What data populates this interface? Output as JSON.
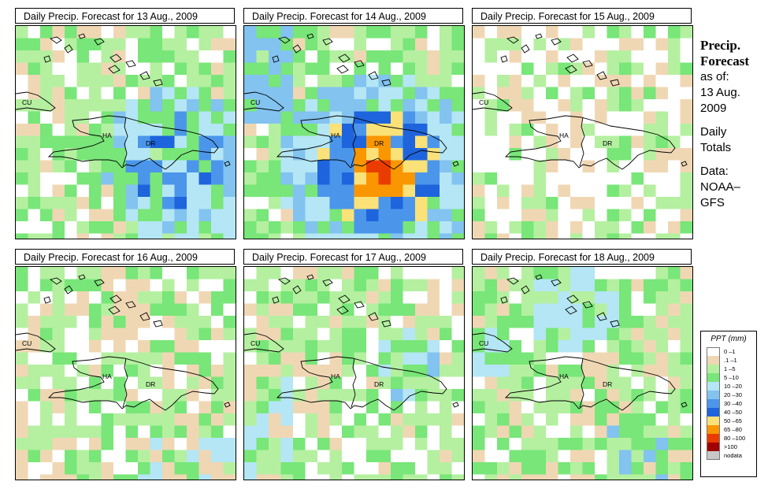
{
  "panels": [
    {
      "id": "p1",
      "title": "Daily Precip. Forecast for  13 Aug., 2009",
      "profile": "moderate_east"
    },
    {
      "id": "p2",
      "title": "Daily Precip. Forecast for  14 Aug., 2009",
      "profile": "heavy_south"
    },
    {
      "id": "p3",
      "title": "Daily Precip. Forecast for  15 Aug., 2009",
      "profile": "dry"
    },
    {
      "id": "p4",
      "title": "Daily Precip. Forecast for  16 Aug., 2009",
      "profile": "light"
    },
    {
      "id": "p5",
      "title": "Daily Precip. Forecast for  17 Aug., 2009",
      "profile": "light_wet"
    },
    {
      "id": "p6",
      "title": "Daily Precip. Forecast for  18 Aug., 2009",
      "profile": "light_blue"
    }
  ],
  "map_labels": {
    "cuba": "CU",
    "haiti": "HA",
    "dominican_republic": "DR"
  },
  "side": {
    "title_line1": "Precip.",
    "title_line2": "Forecast",
    "asof_line1": "as of:",
    "asof_line2": "13 Aug.",
    "asof_line3": "2009",
    "totals_line1": "Daily",
    "totals_line2": "Totals",
    "data_line1": "Data:",
    "data_line2": "NOAA–",
    "data_line3": "GFS"
  },
  "legend": {
    "title": "PPT (mm)",
    "items": [
      {
        "label": "0 –1",
        "color": "#ffffff"
      },
      {
        "label": ".1 –1",
        "color": "#f0d7b4"
      },
      {
        "label": "1 –5",
        "color": "#b4f0a0"
      },
      {
        "label": "5 –10",
        "color": "#78e678"
      },
      {
        "label": "10 –20",
        "color": "#b4e6f5"
      },
      {
        "label": "20 –30",
        "color": "#82c3f0"
      },
      {
        "label": "30 –40",
        "color": "#4b96eb"
      },
      {
        "label": "40 –50",
        "color": "#1e64dc"
      },
      {
        "label": "50 –65",
        "color": "#fae178"
      },
      {
        "label": "65 –80",
        "color": "#fa9600"
      },
      {
        "label": "80 –100",
        "color": "#eb3c00"
      },
      {
        "label": ">100",
        "color": "#a00000"
      },
      {
        "label": "nodata",
        "color": "#c8c8c8"
      }
    ]
  }
}
